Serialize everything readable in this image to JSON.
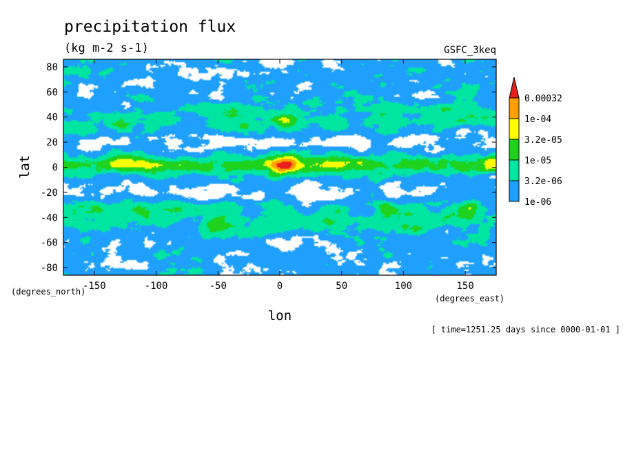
{
  "chart_data": {
    "type": "heatmap",
    "title": "precipitation flux",
    "units": "(kg m-2 s-1)",
    "model": "GSFC_3keq",
    "xlabel": "lon",
    "ylabel": "lat",
    "x_units": "(degrees_east)",
    "y_units": "(degrees_north)",
    "time_label": "[ time=1251.25 days since 0000-01-01 ]",
    "xlim": [
      -175,
      175
    ],
    "ylim": [
      -86,
      86
    ],
    "x_ticks": [
      -150,
      -100,
      -50,
      0,
      50,
      100,
      150
    ],
    "x_tick_labels": [
      "-150",
      "-100",
      "-50",
      "0",
      "50",
      "100",
      "150"
    ],
    "y_ticks": [
      80,
      60,
      40,
      20,
      0,
      -20,
      -40,
      -60,
      -80
    ],
    "y_tick_labels": [
      "80",
      "60",
      "40",
      "20",
      "0",
      "-20",
      "-40",
      "-60",
      "-80"
    ],
    "levels": [
      1e-06,
      3.2e-06,
      1e-05,
      3.2e-05,
      0.0001,
      0.00032
    ],
    "level_labels": [
      "1e-06",
      "3.2e-06",
      "1e-05",
      "3.2e-05",
      "1e-04",
      "0.00032"
    ],
    "level_colors": [
      "#ffffff",
      "#1fa0ff",
      "#00e6a0",
      "#1ed21e",
      "#ffff00",
      "#ffa000",
      "#e61e1e"
    ],
    "grid": false,
    "colorbar": "right"
  }
}
